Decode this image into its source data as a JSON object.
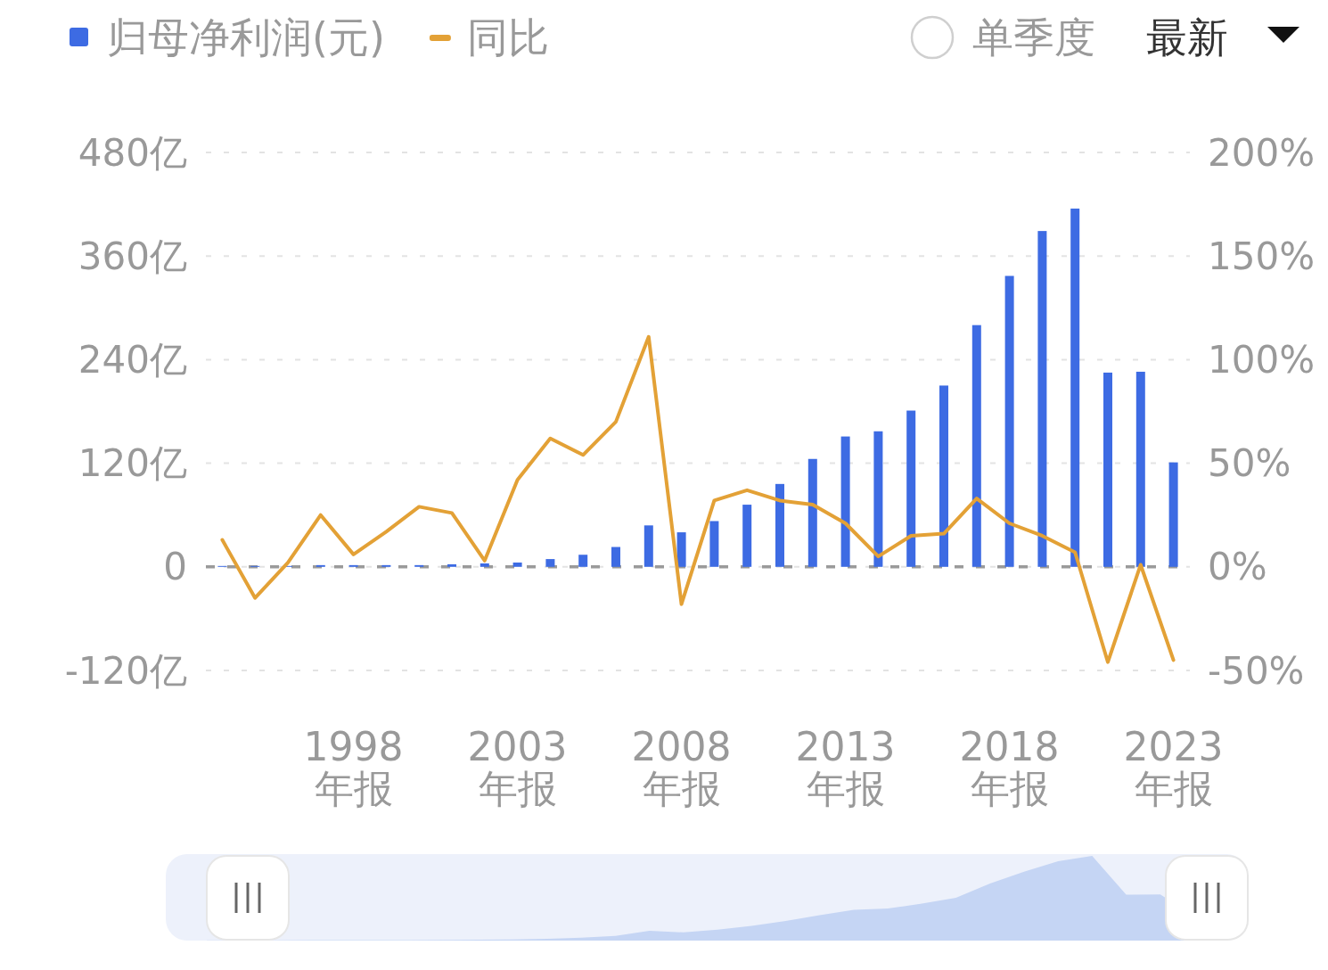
{
  "chart_data": {
    "type": "bar",
    "categories": [
      null,
      null,
      null,
      null,
      "1998\n年报",
      null,
      null,
      null,
      null,
      "2003\n年报",
      null,
      null,
      null,
      null,
      "2008\n年报",
      null,
      null,
      null,
      null,
      "2013\n年报",
      null,
      null,
      null,
      null,
      "2018\n年报",
      null,
      null,
      null,
      null,
      "2023\n年报"
    ],
    "series": [
      {
        "name": "归母净利润(元)",
        "color": "#3d6be3",
        "values": [
          1,
          1,
          1,
          2,
          2,
          2,
          2,
          3,
          4,
          5,
          9,
          14,
          23,
          48,
          40,
          53,
          72,
          96,
          125,
          151,
          157,
          181,
          210,
          280,
          337,
          389,
          415,
          225,
          226,
          121
        ]
      },
      {
        "name": "同比",
        "type": "line",
        "axis": "y2",
        "color": "#e3a136",
        "values": [
          13,
          -15,
          2,
          25,
          6,
          17,
          29,
          26,
          3,
          42,
          62,
          54,
          70,
          111,
          -18,
          32,
          37,
          32,
          30,
          21,
          5,
          15,
          16,
          33,
          21,
          15,
          7,
          -46,
          1,
          -45
        ]
      }
    ],
    "ylim": [
      -120,
      480
    ],
    "yticks": [
      {
        "value": -120,
        "label": "-120亿"
      },
      0,
      {
        "value": 120,
        "label": "120亿"
      },
      {
        "value": 240,
        "label": "240亿"
      },
      {
        "value": 360,
        "label": "360亿"
      },
      {
        "value": 480,
        "label": "480亿"
      }
    ],
    "y2lim": [
      -50,
      200
    ],
    "y2ticks": [
      {
        "value": -50,
        "label": "-50%"
      },
      {
        "value": 0,
        "label": "0%"
      },
      {
        "value": 50,
        "label": "50%"
      },
      {
        "value": 100,
        "label": "100%"
      },
      {
        "value": 150,
        "label": "150%"
      },
      {
        "value": 200,
        "label": "200%"
      }
    ],
    "ref_lines": [
      {
        "axis": "y",
        "value": 0,
        "color": "#9a9a9a",
        "line_style": "dashed"
      }
    ],
    "grid": "y",
    "legend": "top left",
    "annotations": [
      "单季度",
      "最新"
    ]
  }
}
